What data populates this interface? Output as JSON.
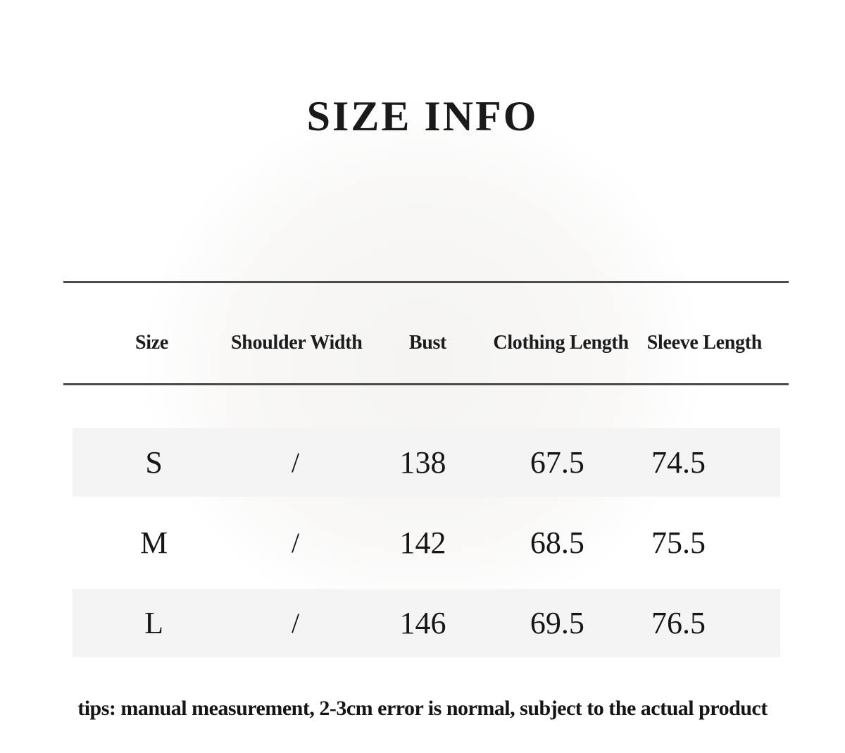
{
  "chart_data": {
    "type": "table",
    "title": "SIZE INFO",
    "columns": [
      "Size",
      "Shoulder Width",
      "Bust",
      "Clothing Length",
      "Sleeve Length"
    ],
    "rows": [
      [
        "S",
        "/",
        "138",
        "67.5",
        "74.5"
      ],
      [
        "M",
        "/",
        "142",
        "68.5",
        "75.5"
      ],
      [
        "L",
        "/",
        "146",
        "69.5",
        "76.5"
      ]
    ],
    "note": "tips: manual measurement, 2-3cm error is normal, subject to the actual product",
    "layout": {
      "grid": "off",
      "header_rules": true,
      "striped_row_indices": [
        0,
        2
      ],
      "units": "cm"
    }
  },
  "colors": {
    "text": "#1d1d1d",
    "rule": "#4b4b4b",
    "row_stripe": "#f4f4f4",
    "page_tint": "#f5f4f2",
    "background": "#ffffff"
  }
}
